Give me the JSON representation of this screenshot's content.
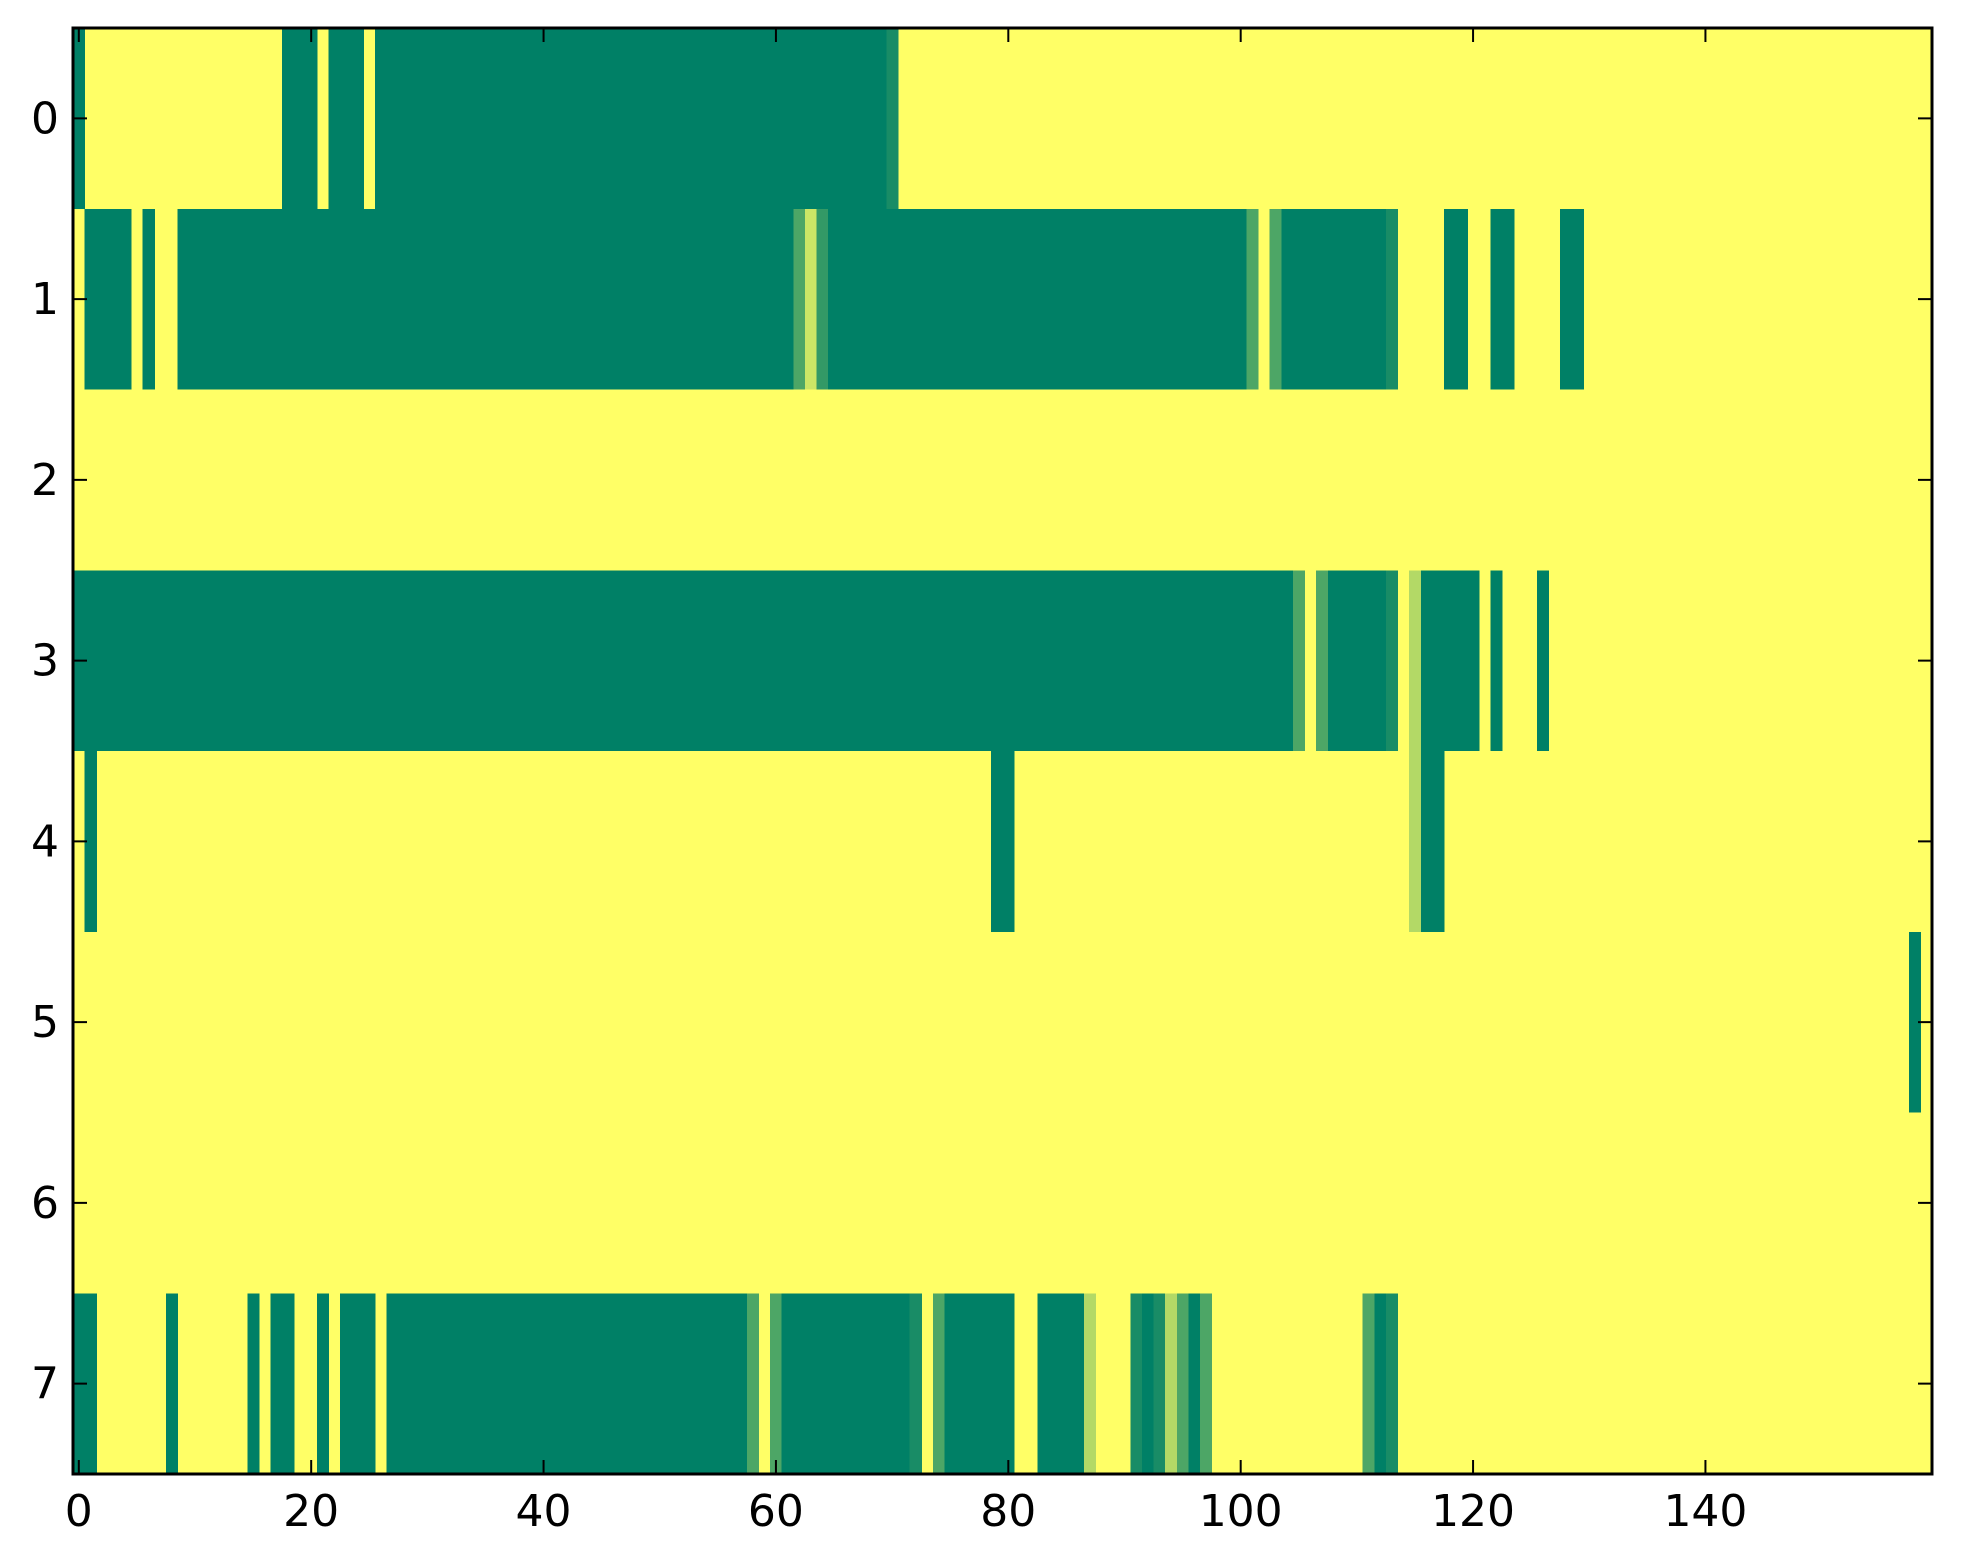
{
  "chart_data": {
    "type": "heatmap",
    "title": "",
    "xlabel": "",
    "ylabel": "",
    "xlim": [
      -0.5,
      159.5
    ],
    "ylim": [
      7.5,
      -0.5
    ],
    "x_ticks": [
      0,
      20,
      40,
      60,
      80,
      100,
      120,
      140
    ],
    "x_tick_labels": [
      "0",
      "20",
      "40",
      "60",
      "80",
      "100",
      "120",
      "140"
    ],
    "y_ticks": [
      0,
      1,
      2,
      3,
      4,
      5,
      6,
      7
    ],
    "y_tick_labels": [
      "0",
      "1",
      "2",
      "3",
      "4",
      "5",
      "6",
      "7"
    ],
    "n_columns": 160,
    "colormap": "summer_r",
    "value_range": [
      0,
      1
    ],
    "background_value": 0,
    "grid": false,
    "rows": [
      {
        "row": 0,
        "segments": [
          [
            0,
            0,
            1.0
          ],
          [
            18,
            20,
            1.0
          ],
          [
            22,
            24,
            1.0
          ],
          [
            26,
            69,
            1.0
          ],
          [
            70,
            70,
            0.9
          ]
        ]
      },
      {
        "row": 1,
        "segments": [
          [
            1,
            4,
            1.0
          ],
          [
            6,
            6,
            1.0
          ],
          [
            9,
            61,
            1.0
          ],
          [
            62,
            62,
            0.7
          ],
          [
            63,
            63,
            0.2
          ],
          [
            64,
            64,
            0.8
          ],
          [
            65,
            100,
            1.0
          ],
          [
            101,
            101,
            0.7
          ],
          [
            103,
            103,
            0.7
          ],
          [
            104,
            112,
            1.0
          ],
          [
            113,
            113,
            0.9
          ],
          [
            118,
            119,
            1.0
          ],
          [
            122,
            123,
            1.0
          ],
          [
            128,
            129,
            1.0
          ]
        ]
      },
      {
        "row": 2,
        "segments": []
      },
      {
        "row": 3,
        "segments": [
          [
            0,
            104,
            1.0
          ],
          [
            105,
            105,
            0.7
          ],
          [
            107,
            107,
            0.7
          ],
          [
            108,
            112,
            1.0
          ],
          [
            113,
            113,
            0.9
          ],
          [
            115,
            115,
            0.3
          ],
          [
            116,
            120,
            1.0
          ],
          [
            122,
            122,
            1.0
          ],
          [
            126,
            126,
            1.0
          ]
        ]
      },
      {
        "row": 4,
        "segments": [
          [
            1,
            1,
            1.0
          ],
          [
            79,
            80,
            1.0
          ],
          [
            115,
            115,
            0.3
          ],
          [
            116,
            117,
            1.0
          ]
        ]
      },
      {
        "row": 5,
        "segments": [
          [
            158,
            158,
            1.0
          ]
        ]
      },
      {
        "row": 6,
        "segments": []
      },
      {
        "row": 7,
        "segments": [
          [
            0,
            1,
            1.0
          ],
          [
            8,
            8,
            1.0
          ],
          [
            15,
            15,
            1.0
          ],
          [
            17,
            18,
            1.0
          ],
          [
            21,
            21,
            1.0
          ],
          [
            23,
            25,
            1.0
          ],
          [
            27,
            57,
            1.0
          ],
          [
            58,
            58,
            0.7
          ],
          [
            60,
            60,
            0.7
          ],
          [
            61,
            71,
            1.0
          ],
          [
            72,
            72,
            0.9
          ],
          [
            74,
            74,
            0.7
          ],
          [
            75,
            80,
            1.0
          ],
          [
            83,
            86,
            1.0
          ],
          [
            87,
            87,
            0.3
          ],
          [
            91,
            91,
            0.9
          ],
          [
            92,
            92,
            1.0
          ],
          [
            93,
            93,
            0.9
          ],
          [
            94,
            94,
            0.3
          ],
          [
            95,
            95,
            0.7
          ],
          [
            96,
            96,
            1.0
          ],
          [
            97,
            97,
            0.7
          ],
          [
            111,
            111,
            0.7
          ],
          [
            112,
            112,
            1.0
          ],
          [
            113,
            113,
            0.9
          ]
        ]
      }
    ]
  }
}
